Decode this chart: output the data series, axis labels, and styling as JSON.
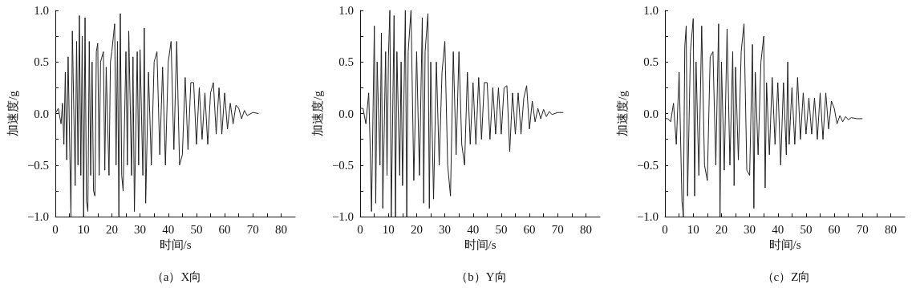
{
  "chart_data": [
    {
      "type": "line",
      "title": "（a）X向",
      "xlabel": "时间/s",
      "ylabel": "加速度/g",
      "xlim": [
        0,
        85
      ],
      "ylim": [
        -1,
        1
      ],
      "xticks": [
        0,
        {
          "value": 5,
          "label": null
        },
        10,
        {
          "value": 15,
          "label": null
        },
        20,
        {
          "value": 25,
          "label": null
        },
        30,
        {
          "value": 35,
          "label": null
        },
        40,
        {
          "value": 45,
          "label": null
        },
        50,
        {
          "value": 55,
          "label": null
        },
        60,
        {
          "value": 65,
          "label": null
        },
        70,
        {
          "value": 75,
          "label": null
        },
        80
      ],
      "yticks": [
        {
          "value": -1,
          "label": "−1.0"
        },
        {
          "value": -0.75,
          "label": null
        },
        {
          "value": -0.5,
          "label": "−0.5"
        },
        {
          "value": -0.25,
          "label": null
        },
        {
          "value": 0,
          "label": "0.0"
        },
        {
          "value": 0.25,
          "label": null
        },
        {
          "value": 0.5,
          "label": "0.5"
        },
        {
          "value": 0.75,
          "label": null
        },
        {
          "value": 1,
          "label": "1.0"
        }
      ],
      "grid": false,
      "marker": "none",
      "line_style": "solid",
      "series": [
        {
          "color": "#222222",
          "x": [
            0,
            1,
            2,
            2.5,
            3,
            3.5,
            4,
            4.5,
            5.5,
            6,
            7,
            7.5,
            8,
            8.5,
            9,
            9.5,
            10,
            10.5,
            11,
            11.5,
            12,
            12.5,
            13,
            13.5,
            14,
            14.5,
            15,
            15.5,
            16,
            17,
            17.5,
            18,
            19,
            19.5,
            20,
            21,
            21.5,
            22,
            22.5,
            23,
            23.5,
            24,
            25,
            25.5,
            26,
            27,
            27.5,
            28,
            29,
            29.5,
            30,
            31,
            31.5,
            32,
            33,
            34,
            35,
            36,
            37,
            38,
            39,
            40,
            41,
            42,
            43,
            44,
            45,
            46,
            47,
            48,
            49,
            50,
            51,
            52,
            53,
            54,
            55,
            56,
            57,
            58,
            59,
            60,
            61,
            62,
            63,
            64,
            65,
            66,
            67,
            68,
            70,
            72
          ],
          "values": [
            0,
            0.05,
            -0.1,
            0.1,
            -0.3,
            0.4,
            -0.45,
            0.55,
            -1.0,
            0.8,
            -0.7,
            0.7,
            -0.5,
            0.95,
            -0.6,
            0.75,
            -1.0,
            0.93,
            -0.85,
            -0.95,
            0.7,
            -0.6,
            0.5,
            -0.75,
            -0.8,
            0.6,
            0.68,
            -0.6,
            0.5,
            0.6,
            -0.55,
            0.45,
            -0.6,
            0.5,
            0.6,
            0.87,
            -0.5,
            0.7,
            -1.0,
            0.97,
            -0.6,
            -0.75,
            0.6,
            -0.5,
            0.8,
            -0.6,
            0.55,
            -0.95,
            0.6,
            -0.5,
            0.62,
            -0.6,
            0.83,
            -0.87,
            0.4,
            -0.5,
            0.5,
            0.6,
            -0.4,
            0.45,
            -0.5,
            0.5,
            0.7,
            -0.35,
            0.7,
            -0.5,
            -0.4,
            0.35,
            -0.35,
            0.3,
            0.3,
            -0.3,
            0.25,
            -0.25,
            0.2,
            -0.3,
            0.2,
            0.3,
            -0.2,
            0.25,
            -0.2,
            0.2,
            -0.15,
            0.1,
            -0.1,
            0.08,
            0.05,
            -0.05,
            0.03,
            -0.02,
            0.01,
            0
          ]
        }
      ]
    },
    {
      "type": "line",
      "title": "（b）Y向",
      "xlabel": "时间/s",
      "ylabel": "加速度/g",
      "xlim": [
        0,
        85
      ],
      "ylim": [
        -1,
        1
      ],
      "xticks": [
        0,
        {
          "value": 5,
          "label": null
        },
        10,
        {
          "value": 15,
          "label": null
        },
        20,
        {
          "value": 25,
          "label": null
        },
        30,
        {
          "value": 35,
          "label": null
        },
        40,
        {
          "value": 45,
          "label": null
        },
        50,
        {
          "value": 55,
          "label": null
        },
        60,
        {
          "value": 65,
          "label": null
        },
        70,
        {
          "value": 75,
          "label": null
        },
        80
      ],
      "yticks": [
        {
          "value": -1,
          "label": "−1.0"
        },
        {
          "value": -0.75,
          "label": null
        },
        {
          "value": -0.5,
          "label": "−0.5"
        },
        {
          "value": -0.25,
          "label": null
        },
        {
          "value": 0,
          "label": "0.0"
        },
        {
          "value": 0.25,
          "label": null
        },
        {
          "value": 0.5,
          "label": "0.5"
        },
        {
          "value": 0.75,
          "label": null
        },
        {
          "value": 1,
          "label": "1.0"
        }
      ],
      "grid": false,
      "marker": "none",
      "line_style": "solid",
      "series": [
        {
          "color": "#222222",
          "x": [
            0,
            1,
            2,
            3,
            3.5,
            4,
            5,
            5.5,
            6,
            7,
            7.5,
            8,
            9,
            9.5,
            10,
            10.5,
            11,
            12,
            12.5,
            13,
            14,
            14.5,
            15,
            16,
            16.5,
            17,
            18,
            19,
            20,
            21,
            22,
            22.5,
            23,
            24,
            24.5,
            25,
            26,
            27,
            28,
            29,
            30,
            31,
            32,
            33,
            34,
            35,
            36,
            37,
            38,
            39,
            40,
            41,
            42,
            43,
            44,
            45,
            46,
            47,
            48,
            49,
            50,
            51,
            52,
            53,
            54,
            55,
            56,
            57,
            58,
            59,
            60,
            61,
            62,
            63,
            64,
            65,
            66,
            67,
            68,
            70,
            72
          ],
          "values": [
            0.05,
            0.05,
            -0.1,
            0.2,
            -0.3,
            -0.95,
            0.85,
            -0.87,
            0.5,
            -0.5,
            0.78,
            -0.92,
            0.6,
            -0.6,
            0.55,
            1.0,
            -1.0,
            0.95,
            -1.0,
            0.6,
            -0.6,
            0.5,
            -0.7,
            1.0,
            -1.0,
            0.6,
            1.0,
            -0.65,
            0.6,
            -0.6,
            0.93,
            -0.87,
            0.6,
            0.97,
            -0.92,
            0.5,
            -0.83,
            0.5,
            -0.5,
            0.4,
            0.7,
            -0.5,
            -0.8,
            0.6,
            -0.4,
            0.6,
            -0.3,
            -0.5,
            0.4,
            -0.3,
            0.3,
            -0.3,
            0.35,
            -0.25,
            0.3,
            0.3,
            -0.25,
            0.25,
            -0.2,
            0.25,
            -0.2,
            0.25,
            0.27,
            -0.37,
            0.2,
            -0.2,
            0.2,
            -0.2,
            0.15,
            0.27,
            -0.15,
            0.12,
            -0.08,
            0.05,
            -0.05,
            0.04,
            -0.03,
            0.02,
            -0.01,
            0.01,
            0.01
          ]
        }
      ]
    },
    {
      "type": "line",
      "title": "（c）Z向",
      "xlabel": "时间/s",
      "ylabel": "加速度/g",
      "xlim": [
        0,
        85
      ],
      "ylim": [
        -1,
        1
      ],
      "xticks": [
        0,
        {
          "value": 5,
          "label": null
        },
        10,
        {
          "value": 15,
          "label": null
        },
        20,
        {
          "value": 25,
          "label": null
        },
        30,
        {
          "value": 35,
          "label": null
        },
        40,
        {
          "value": 45,
          "label": null
        },
        50,
        {
          "value": 55,
          "label": null
        },
        60,
        {
          "value": 65,
          "label": null
        },
        70,
        {
          "value": 75,
          "label": null
        },
        80
      ],
      "yticks": [
        {
          "value": -1,
          "label": "−1.0"
        },
        {
          "value": -0.75,
          "label": null
        },
        {
          "value": -0.5,
          "label": "−0.5"
        },
        {
          "value": -0.25,
          "label": null
        },
        {
          "value": 0,
          "label": "0.0"
        },
        {
          "value": 0.25,
          "label": null
        },
        {
          "value": 0.5,
          "label": "0.5"
        },
        {
          "value": 0.75,
          "label": null
        },
        {
          "value": 1,
          "label": "1.0"
        }
      ],
      "grid": false,
      "marker": "none",
      "line_style": "solid",
      "series": [
        {
          "color": "#222222",
          "x": [
            0,
            1,
            2,
            3,
            4,
            5,
            6,
            6.5,
            7,
            7.5,
            8,
            9,
            10,
            10.5,
            11,
            12,
            13,
            14,
            15,
            16,
            17,
            18,
            19,
            19.5,
            20,
            21,
            22,
            23,
            24,
            24.5,
            25,
            26,
            27,
            28,
            29,
            30,
            31,
            31.5,
            32,
            33,
            34,
            35,
            35.5,
            36,
            37,
            38,
            39,
            40,
            41,
            42,
            43,
            43.5,
            44,
            45,
            46,
            47,
            48,
            49,
            50,
            51,
            52,
            53,
            54,
            55,
            56,
            57,
            58,
            59,
            60,
            61,
            62,
            63,
            64,
            65,
            66,
            68,
            70
          ],
          "values": [
            -0.05,
            -0.05,
            -0.08,
            0.1,
            -0.3,
            0.4,
            -0.85,
            -1.0,
            0.65,
            0.85,
            -0.8,
            0.6,
            0.92,
            -0.8,
            0.5,
            -0.6,
            0.85,
            -0.5,
            -0.65,
            0.55,
            0.6,
            -0.5,
            0.87,
            -1.0,
            0.5,
            -0.55,
            0.82,
            -0.5,
            0.6,
            -0.7,
            0.45,
            -0.45,
            0.6,
            0.87,
            -0.55,
            -0.6,
            0.67,
            -0.92,
            0.4,
            -0.4,
            0.5,
            0.75,
            -0.72,
            0.3,
            -0.4,
            0.35,
            -0.3,
            0.3,
            -0.5,
            0.3,
            -0.4,
            0.5,
            -0.3,
            0.25,
            -0.3,
            0.35,
            -0.25,
            0.2,
            -0.2,
            0.15,
            -0.2,
            0.15,
            -0.25,
            0.2,
            -0.25,
            0.2,
            -0.15,
            0.12,
            0.05,
            -0.1,
            -0.02,
            -0.08,
            -0.03,
            -0.06,
            -0.04,
            -0.05,
            -0.05
          ]
        }
      ]
    }
  ]
}
